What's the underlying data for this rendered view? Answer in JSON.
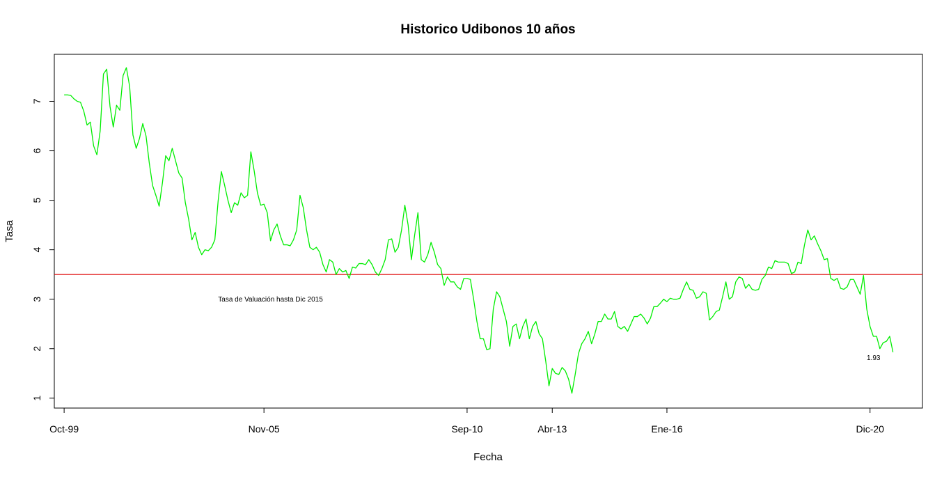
{
  "chart_data": {
    "type": "line",
    "title": "Historico Udibonos 10 años",
    "xlabel": "Fecha",
    "ylabel": "Tasa",
    "xlim": [
      -3,
      262
    ],
    "ylim": [
      0.8,
      7.95
    ],
    "x_ticks": [
      {
        "x": 0,
        "label": "Oct-99"
      },
      {
        "x": 61,
        "label": "Nov-05"
      },
      {
        "x": 123,
        "label": "Sep-10"
      },
      {
        "x": 149,
        "label": "Abr-13"
      },
      {
        "x": 184,
        "label": "Ene-16"
      },
      {
        "x": 246,
        "label": "Dic-20"
      }
    ],
    "y_ticks": [
      1,
      2,
      3,
      4,
      5,
      6,
      7
    ],
    "grid": false,
    "series": [
      {
        "color": "#00ee00",
        "values": [
          7.13,
          7.13,
          7.12,
          7.05,
          7.0,
          6.98,
          6.8,
          6.52,
          6.58,
          6.1,
          5.92,
          6.4,
          7.55,
          7.65,
          6.9,
          6.48,
          6.92,
          6.82,
          7.52,
          7.68,
          7.3,
          6.32,
          6.05,
          6.25,
          6.55,
          6.3,
          5.75,
          5.3,
          5.1,
          4.88,
          5.35,
          5.9,
          5.8,
          6.05,
          5.8,
          5.55,
          5.45,
          4.95,
          4.62,
          4.2,
          4.35,
          4.05,
          3.9,
          4.0,
          3.98,
          4.05,
          4.2,
          4.98,
          5.58,
          5.3,
          5.0,
          4.75,
          4.95,
          4.9,
          5.15,
          5.05,
          5.1,
          5.98,
          5.6,
          5.15,
          4.9,
          4.92,
          4.75,
          4.18,
          4.4,
          4.52,
          4.28,
          4.1,
          4.1,
          4.08,
          4.2,
          4.4,
          5.1,
          4.85,
          4.4,
          4.05,
          4.0,
          4.05,
          3.95,
          3.7,
          3.55,
          3.8,
          3.75,
          3.5,
          3.62,
          3.55,
          3.58,
          3.42,
          3.65,
          3.63,
          3.72,
          3.72,
          3.7,
          3.8,
          3.7,
          3.55,
          3.48,
          3.62,
          3.8,
          4.2,
          4.22,
          3.95,
          4.05,
          4.4,
          4.9,
          4.5,
          3.8,
          4.3,
          4.75,
          3.8,
          3.75,
          3.9,
          4.15,
          3.95,
          3.7,
          3.62,
          3.28,
          3.45,
          3.35,
          3.35,
          3.25,
          3.2,
          3.42,
          3.42,
          3.4,
          3.0,
          2.55,
          2.2,
          2.2,
          1.98,
          2.0,
          2.8,
          3.15,
          3.05,
          2.8,
          2.55,
          2.05,
          2.45,
          2.5,
          2.2,
          2.45,
          2.6,
          2.2,
          2.45,
          2.55,
          2.3,
          2.2,
          1.75,
          1.25,
          1.6,
          1.5,
          1.48,
          1.62,
          1.55,
          1.38,
          1.1,
          1.48,
          1.9,
          2.1,
          2.2,
          2.35,
          2.1,
          2.3,
          2.55,
          2.55,
          2.7,
          2.6,
          2.6,
          2.75,
          2.45,
          2.4,
          2.45,
          2.35,
          2.5,
          2.65,
          2.65,
          2.7,
          2.62,
          2.5,
          2.62,
          2.85,
          2.85,
          2.92,
          3.0,
          2.95,
          3.02,
          3.0,
          3.0,
          3.02,
          3.2,
          3.35,
          3.2,
          3.18,
          3.02,
          3.05,
          3.15,
          3.12,
          2.58,
          2.65,
          2.75,
          2.78,
          3.05,
          3.35,
          3.0,
          3.05,
          3.35,
          3.45,
          3.42,
          3.22,
          3.3,
          3.2,
          3.18,
          3.2,
          3.4,
          3.48,
          3.65,
          3.62,
          3.78,
          3.75,
          3.75,
          3.75,
          3.72,
          3.52,
          3.55,
          3.75,
          3.72,
          4.1,
          4.4,
          4.2,
          4.28,
          4.12,
          3.98,
          3.8,
          3.82,
          3.42,
          3.38,
          3.42,
          3.22,
          3.2,
          3.25,
          3.4,
          3.4,
          3.25,
          3.1,
          3.48,
          2.8,
          2.45,
          2.25,
          2.25,
          2.0,
          2.12,
          2.15,
          2.25,
          1.93
        ]
      }
    ],
    "hlines": [
      {
        "y": 3.5,
        "color": "#dd0000"
      }
    ],
    "annotations": [
      {
        "text": "Tasa de Valuación hasta Dic 2015",
        "x": 47,
        "y": 2.95
      },
      {
        "text": "1.93",
        "x": 245,
        "y": 1.77
      }
    ]
  }
}
